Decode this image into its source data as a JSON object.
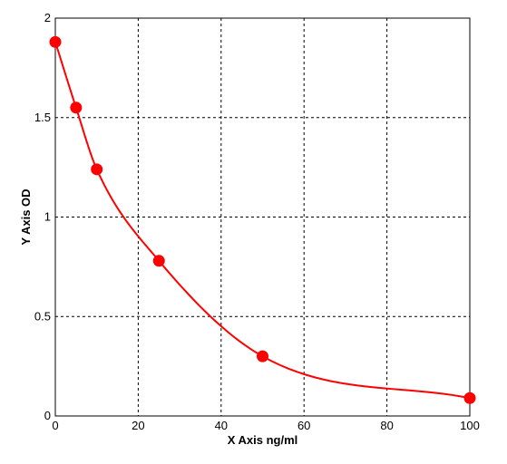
{
  "colors": {
    "background": "#ffffff",
    "axes": "#000000",
    "grid": "#000000",
    "series": "#ff0000"
  },
  "chart_data": {
    "type": "scatter",
    "title": "",
    "xlabel": "X Axis ng/ml",
    "ylabel": "Y Axis OD",
    "xlim": [
      0,
      100
    ],
    "ylim": [
      0,
      2
    ],
    "x_ticks": [
      "0",
      "20",
      "40",
      "60",
      "80",
      "100"
    ],
    "y_ticks": [
      "0",
      "0.5",
      "1",
      "1.5",
      "2"
    ],
    "grid": true,
    "grid_style": "dashed",
    "series": [
      {
        "points": [
          {
            "x": 0,
            "y": 1.88
          },
          {
            "x": 5,
            "y": 1.55
          },
          {
            "x": 10,
            "y": 1.24
          },
          {
            "x": 25,
            "y": 0.78
          },
          {
            "x": 50,
            "y": 0.3
          },
          {
            "x": 100,
            "y": 0.09
          }
        ],
        "fit": "smooth-curve",
        "color": "#ff0000"
      }
    ]
  }
}
